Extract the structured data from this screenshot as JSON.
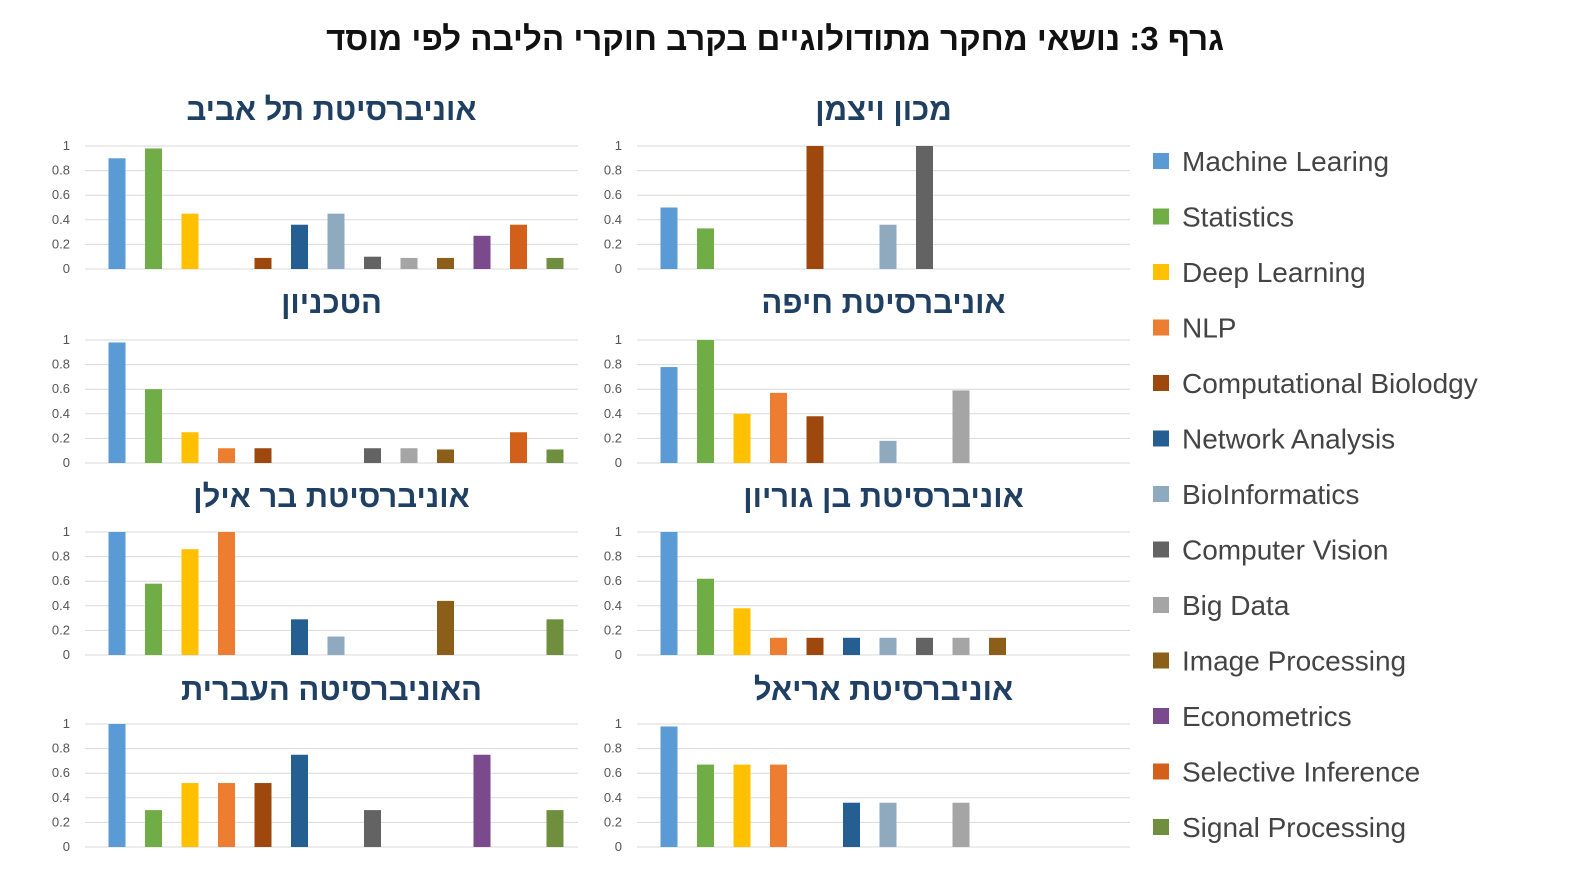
{
  "chart_data": {
    "type": "bar",
    "title": "גרף 3: נושאי מחקר מתודולוגיים בקרב חוקרי הליבה לפי מוסד",
    "legend_position": "right",
    "grid": true,
    "ylim": [
      0,
      1
    ],
    "yticks": [
      "0",
      "0.2",
      "0.4",
      "0.6",
      "0.8",
      "1"
    ],
    "categories": [
      "Machine Learing",
      "Statistics",
      "Deep Learning",
      "NLP",
      "Computational Biolodgy",
      "Network Analysis",
      "BioInformatics",
      "Computer Vision",
      "Big Data",
      "Image Processing",
      "Econometrics",
      "Selective Inference",
      "Signal Processing"
    ],
    "colors": [
      "#5B9BD5",
      "#70AD47",
      "#FFC000",
      "#ED7D31",
      "#9E480E",
      "#255E91",
      "#8FA9BF",
      "#636363",
      "#A5A5A5",
      "#8B5E1A",
      "#7B4A8C",
      "#D2601A",
      "#6F8F3F"
    ],
    "panels": [
      {
        "title": "אוניברסיטת תל אביב",
        "values": [
          0.9,
          0.98,
          0.45,
          0,
          0.09,
          0.36,
          0.45,
          0.1,
          0.09,
          0.09,
          0.27,
          0.36,
          0.09
        ]
      },
      {
        "title": "מכון ויצמן",
        "values": [
          0.5,
          0.33,
          0,
          0,
          1,
          0,
          0.36,
          1,
          0,
          0,
          0,
          0,
          0
        ]
      },
      {
        "title": "הטכניון",
        "values": [
          0.98,
          0.6,
          0.25,
          0.12,
          0.12,
          0,
          0,
          0.12,
          0.12,
          0.11,
          0,
          0.25,
          0.11
        ]
      },
      {
        "title": "אוניברסיטת חיפה",
        "values": [
          0.78,
          1,
          0.4,
          0.57,
          0.38,
          0,
          0.18,
          0,
          0.59,
          0,
          0,
          0,
          0
        ]
      },
      {
        "title": "אוניברסיטת בר אילן",
        "values": [
          1,
          0.58,
          0.86,
          1,
          0,
          0.29,
          0.15,
          0,
          0,
          0.44,
          0,
          0,
          0.29
        ]
      },
      {
        "title": "אוניברסיטת בן גוריון",
        "values": [
          1,
          0.62,
          0.38,
          0.14,
          0.14,
          0.14,
          0.14,
          0.14,
          0.14,
          0.14,
          0,
          0,
          0
        ]
      },
      {
        "title": "האוניברסיטה העברית",
        "values": [
          1,
          0.3,
          0.52,
          0.52,
          0.52,
          0.75,
          0,
          0.3,
          0,
          0,
          0.75,
          0,
          0.3
        ]
      },
      {
        "title": "אוניברסיטת אריאל",
        "values": [
          0.98,
          0.67,
          0.67,
          0.67,
          0,
          0.36,
          0.36,
          0,
          0.36,
          0,
          0,
          0,
          0
        ]
      }
    ]
  }
}
